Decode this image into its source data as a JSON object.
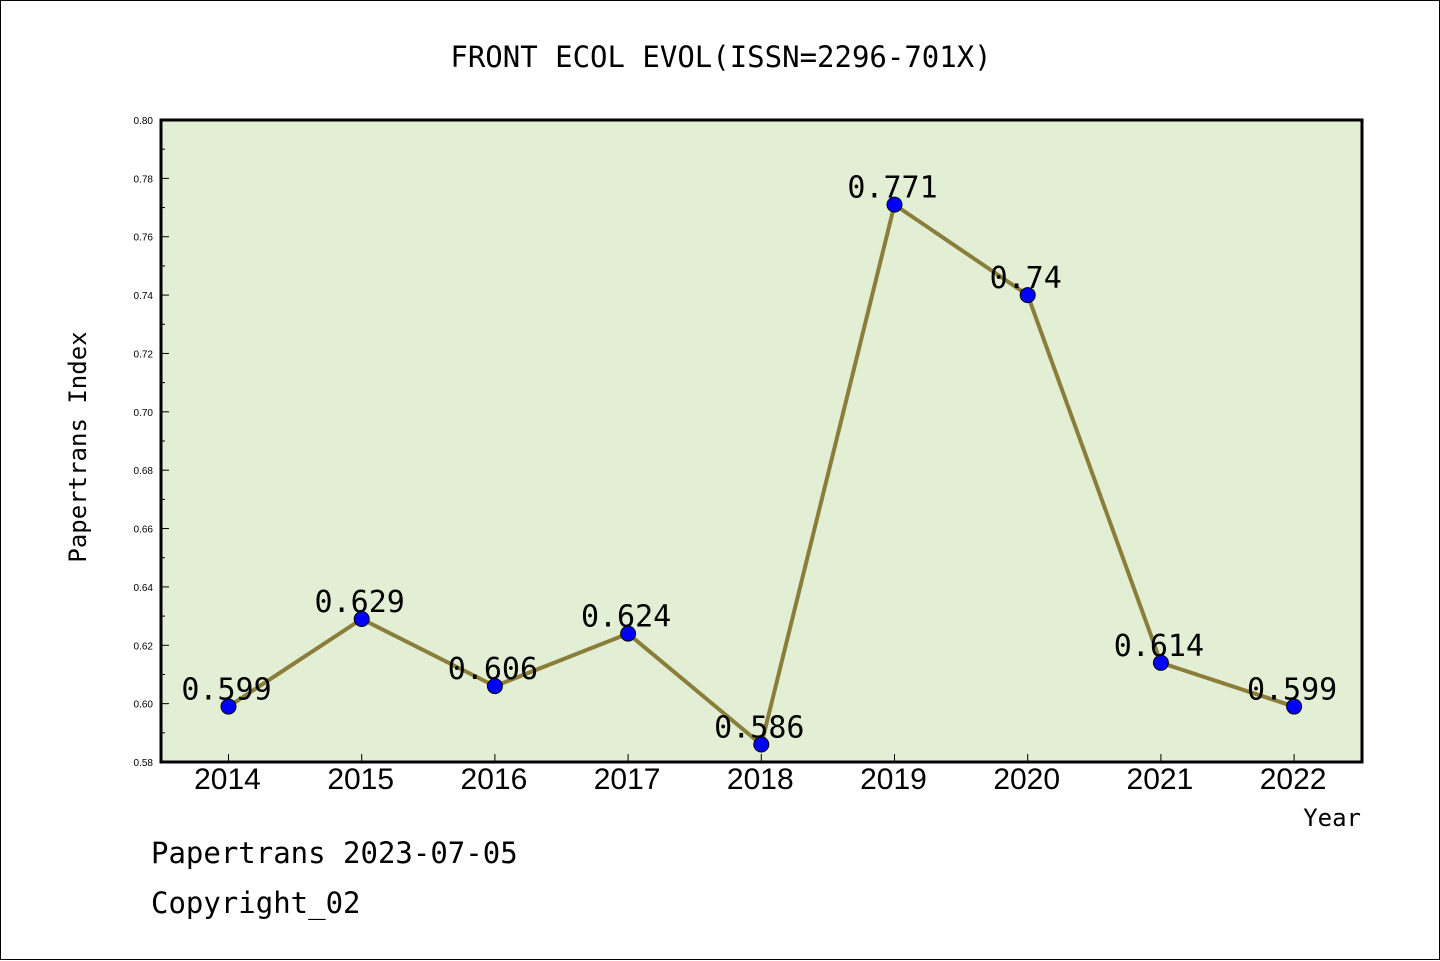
{
  "chart_data": {
    "type": "line",
    "title": "FRONT ECOL EVOL(ISSN=2296-701X)",
    "xlabel": "Year",
    "ylabel": "Papertrans Index",
    "categories": [
      "2014",
      "2015",
      "2016",
      "2017",
      "2018",
      "2019",
      "2020",
      "2021",
      "2022"
    ],
    "values": [
      0.599,
      0.629,
      0.606,
      0.624,
      0.586,
      0.771,
      0.74,
      0.614,
      0.599
    ],
    "data_labels": [
      "0.599",
      "0.629",
      "0.606",
      "0.624",
      "0.586",
      "0.771",
      "0.74",
      "0.614",
      "0.599"
    ],
    "ylim": [
      0.58,
      0.8
    ],
    "yticks": [
      "0.58",
      "0.60",
      "0.62",
      "0.64",
      "0.66",
      "0.68",
      "0.70",
      "0.72",
      "0.74",
      "0.76",
      "0.78",
      "0.80"
    ],
    "grid": false,
    "colors": {
      "plot_background": "#e2efd4",
      "line": "#8b7d3a",
      "marker": "#0000ff"
    }
  },
  "footer": {
    "line1": "Papertrans 2023-07-05",
    "line2": "Copyright_02"
  }
}
